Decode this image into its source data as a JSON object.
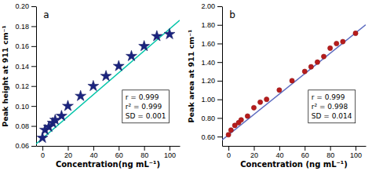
{
  "chart_data": [
    {
      "type": "scatter",
      "title": "a",
      "x_label": "Concentration(ng mL⁻¹)",
      "y_label": "Peak height at 911 cm⁻¹",
      "xlim": [
        -5,
        108
      ],
      "ylim": [
        0.06,
        0.2
      ],
      "xticks": [
        0,
        20,
        40,
        60,
        80,
        100
      ],
      "yticks": [
        0.06,
        0.08,
        {
          "value": 0.1,
          "label": "0.10"
        },
        0.12,
        0.14,
        0.16,
        0.18,
        {
          "value": 0.2,
          "label": "0.20"
        }
      ],
      "annotations": [
        "r = 0.999",
        "r² = 0.999",
        "SD = 0.001"
      ],
      "series": [
        {
          "type": "line",
          "color": "#00c4a8",
          "line_style": "solid",
          "x": [
            -5,
            108
          ],
          "values": [
            0.062015,
            0.185976
          ]
        },
        {
          "type": "scatter",
          "color": "#1a237e",
          "marker": "star",
          "x": [
            0,
            2,
            5,
            8,
            10,
            15,
            20,
            30,
            40,
            50,
            60,
            70,
            80,
            90,
            100
          ],
          "values": [
            0.068,
            0.076,
            0.079,
            0.083,
            0.086,
            0.09,
            0.1,
            0.11,
            0.12,
            0.13,
            0.14,
            0.15,
            0.16,
            0.17,
            0.172
          ]
        }
      ]
    },
    {
      "type": "scatter",
      "title": "b",
      "x_label": "Concentration (ng mL⁻¹)",
      "y_label": "Peak area at 911 cm⁻¹",
      "xlim": [
        -5,
        108
      ],
      "ylim": [
        0.5,
        2
      ],
      "xticks": [
        0,
        20,
        40,
        60,
        80,
        100
      ],
      "yticks": [
        {
          "value": 0.6,
          "label": "0.60"
        },
        {
          "value": 0.8,
          "label": "0.80"
        },
        {
          "value": 1,
          "label": "1.00"
        },
        {
          "value": 1.2,
          "label": "1.20"
        },
        {
          "value": 1.4,
          "label": "1.40"
        },
        {
          "value": 1.6,
          "label": "1.60"
        },
        {
          "value": 1.8,
          "label": "1.80"
        },
        {
          "value": 2,
          "label": "2.00"
        }
      ],
      "annotations": [
        "r = 0.999",
        "r² = 0.998",
        "SD = 0.014"
      ],
      "series": [
        {
          "type": "line",
          "color": "#5c6bc0",
          "line_style": "solid",
          "x": [
            -5,
            108
          ],
          "values": [
            0.56325,
            1.8006
          ]
        },
        {
          "type": "scatter",
          "color": "#b71c1c",
          "marker": "circle",
          "x": [
            0,
            2,
            5,
            8,
            10,
            15,
            20,
            25,
            30,
            40,
            50,
            60,
            65,
            70,
            75,
            80,
            85,
            90,
            100
          ],
          "values": [
            0.62,
            0.67,
            0.72,
            0.75,
            0.78,
            0.82,
            0.91,
            0.97,
            1.0,
            1.1,
            1.2,
            1.3,
            1.35,
            1.4,
            1.46,
            1.55,
            1.6,
            1.62,
            1.71
          ]
        }
      ]
    }
  ]
}
